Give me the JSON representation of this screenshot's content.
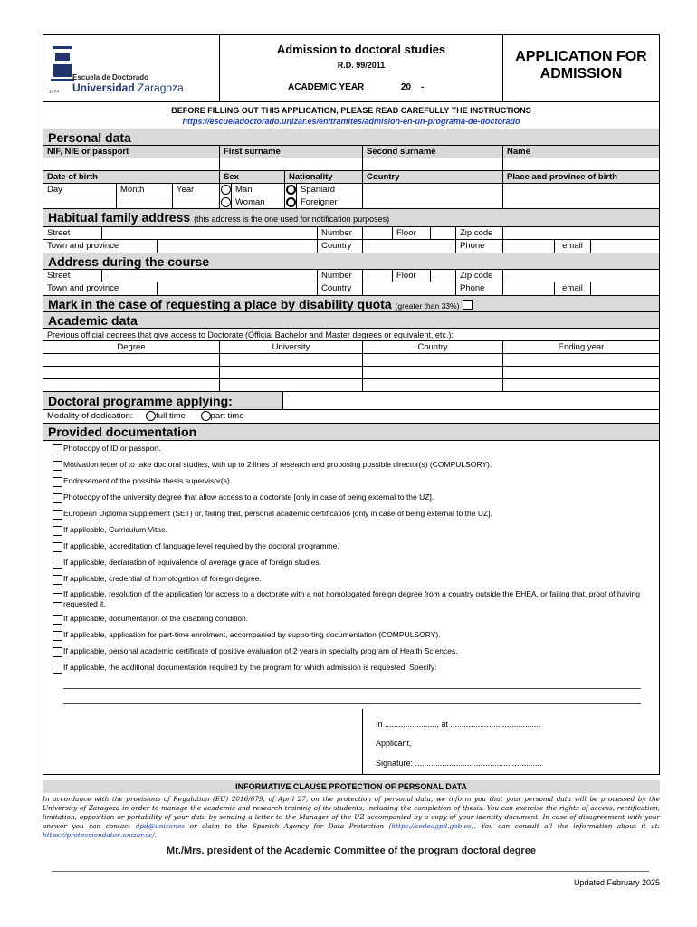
{
  "header": {
    "logo_school": "Escuela de Doctorado",
    "logo_univ_bold": "Universidad",
    "logo_univ": "Zaragoza",
    "logo_year": "1474",
    "title": "Admission to doctoral studies",
    "rd": "R.D. 99/2011",
    "academic_year": "ACADEMIC YEAR",
    "year_value": "20",
    "year_dash": "-",
    "app_title_1": "APPLICATION FOR",
    "app_title_2": "ADMISSION"
  },
  "instructions": {
    "text": "BEFORE FILLING OUT THIS APPLICATION, PLEASE READ CAREFULLY THE INSTRUCTIONS",
    "link": "https://escueladoctorado.unizar.es/en/tramites/admision-en-un-programa-de-doctorado"
  },
  "personal": {
    "title": "Personal data",
    "nif": "NIF, NIE or passport",
    "first": "First surname",
    "second": "Second surname",
    "name": "Name",
    "dob": "Date of birth",
    "sex": "Sex",
    "nationality": "Nationality",
    "country": "Country",
    "place": "Place and province of birth",
    "day": "Day",
    "month": "Month",
    "year": "Year",
    "man": "Man",
    "woman": "Woman",
    "spaniard": "Spaniard",
    "foreigner": "Foreigner"
  },
  "family": {
    "title": "Habitual family address",
    "note": "(this address is the one used for notification purposes)",
    "street": "Street",
    "number": "Number",
    "floor": "Floor",
    "zip": "Zip code",
    "town": "Town and province",
    "country": "Country",
    "phone": "Phone",
    "email": "email"
  },
  "course": {
    "title": "Address during the course",
    "street": "Street",
    "number": "Number",
    "floor": "Floor",
    "zip": "Zip code",
    "town": "Town and province",
    "country": "Country",
    "phone": "Phone",
    "email": "email"
  },
  "disability": {
    "title": "Mark in the case of requesting a place by disability quota",
    "note": "(greater than 33%)"
  },
  "academic": {
    "title": "Academic data",
    "previous": "Previous official degrees that give access to Doctorate (Official Bachelor and Master degrees or equivalent, etc.):",
    "cols": [
      "Degree",
      "University",
      "Country",
      "Ending year"
    ]
  },
  "programme": {
    "title": "Doctoral programme applying:",
    "modality": "Modality of dedication:",
    "full": "full time",
    "part": "part time"
  },
  "documentation": {
    "title": "Provided documentation",
    "items": [
      "Photocopy of ID or passport.",
      "Motivation letter of to take doctoral studies, with up to 2 lines of research and proposing possible director(s) (COMPULSORY).",
      "Endorsement of the possible thesis supervisor(s).",
      "Photocopy of the university degree that allow access to a doctorate [only in case of being external to the UZ].",
      "European Diploma Supplement (SET) or, failing that, personal academic certification [only in case of being external to the UZ].",
      "If applicable, Curriculum Vitae.",
      "If applicable, accreditation of language level required by the doctoral programme.",
      "If applicable, declaration of equivalence of average grade of foreign studies.",
      "If applicable, credential of homologation of foreign degree.",
      "If applicable, resolution of the application for access to a doctorate with a not homologated foreign degree from a country outside the EHEA, or failing that, proof of having requested it.",
      "If applicable, documentation of the disabling condition.",
      "If applicable, application for part-time enrolment, accompanied by supporting documentation (COMPULSORY).",
      "If applicable, personal academic certificate of positive evaluation of 2 years in specialty program of Health Sciences.",
      "If applicable, the additional documentation required by the program for which admission is requested. Specify:"
    ]
  },
  "signature": {
    "place": "In ......................., at ........................................",
    "applicant": "Applicant,",
    "sign": "Signature: ........................................................"
  },
  "privacy": {
    "title": "INFORMATIVE CLAUSE PROTECTION OF PERSONAL DATA",
    "text1": "In accordance with the provisions of Regulation (EU) 2016/679, of April 27, on the protection of personal data, we inform you that your personal data will be processed by the University of Zaragoza in order to manage the academic and research training of its students, including the completion of thesis. You can exercise the rights of access, rectification, limitation, opposition or portability of your data by sending a letter to the Manager of the UZ accompanied by a copy of your identity document. In case of disagreement with your answer you can contact ",
    "email": "dpd@unizar.es",
    "text2": " or claim to the Spanish Agency for Data Protection (",
    "link1": "https://sedeagpd.gob.es",
    "text3": "). You can consult all the information about it at: ",
    "link2": "https://protecciondatos.unizar.es/",
    "text4": "."
  },
  "footer": {
    "addressee": "Mr./Mrs. president of the Academic Committee of the program doctoral degree",
    "updated": "Updated February 2025"
  }
}
